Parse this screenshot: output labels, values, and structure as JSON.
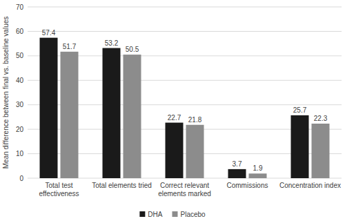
{
  "chart_data": {
    "type": "bar",
    "y_label": "Mean difference between final vs. baseline values",
    "categories": [
      "Total test effectiveness",
      "Total elements tried",
      "Correct relevant elements marked",
      "Commissions",
      "Concentration index"
    ],
    "series": [
      {
        "name": "DHA",
        "color": "#1a1a1a",
        "values": [
          57.4,
          53.2,
          22.7,
          3.7,
          25.7
        ]
      },
      {
        "name": "Placebo",
        "color": "#8c8c8c",
        "values": [
          51.7,
          50.5,
          21.8,
          1.9,
          22.3
        ]
      }
    ],
    "ylim": [
      0,
      70
    ],
    "yticks": [
      0,
      10,
      20,
      30,
      40,
      50,
      60,
      70
    ],
    "grid": true,
    "legend": "bottom",
    "data_labels": true
  }
}
